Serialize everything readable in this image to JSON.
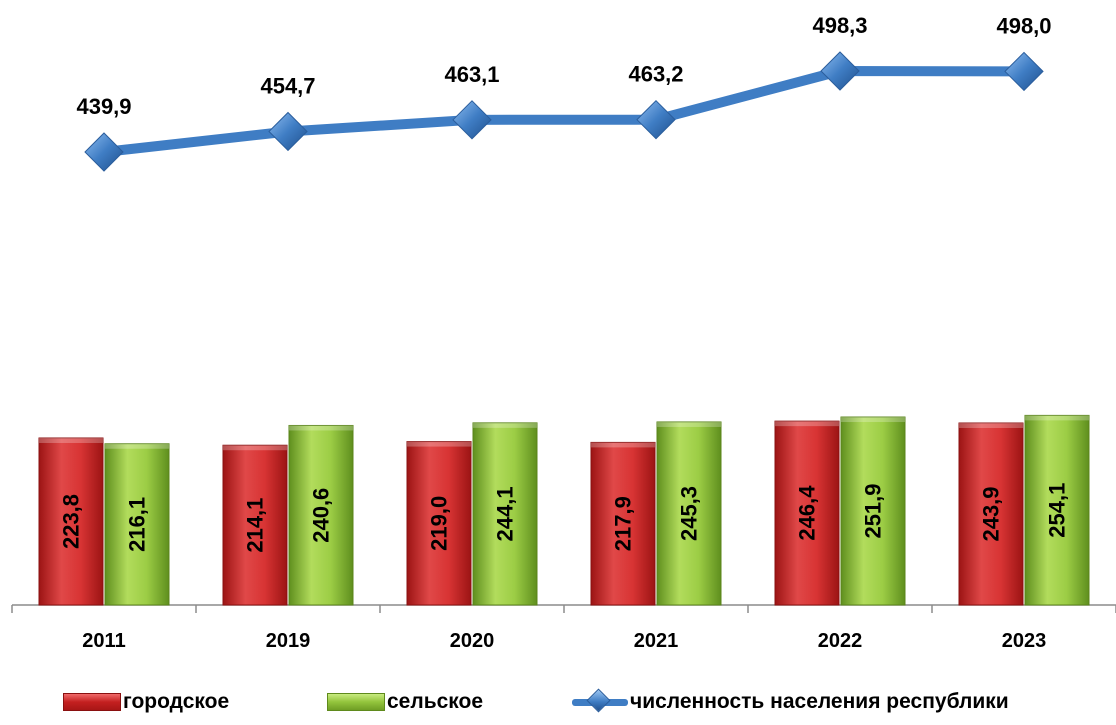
{
  "chart_data": {
    "type": "bar+line",
    "categories": [
      "2011",
      "2019",
      "2020",
      "2021",
      "2022",
      "2023"
    ],
    "series": [
      {
        "name": "городское",
        "type": "bar",
        "color": "#d42f2f",
        "values": [
          223.8,
          214.1,
          219.0,
          217.9,
          246.4,
          243.9
        ],
        "labels": [
          "223,8",
          "214,1",
          "219,0",
          "217,9",
          "246,4",
          "243,9"
        ]
      },
      {
        "name": "сельское",
        "type": "bar",
        "color": "#8fc13a",
        "values": [
          216.1,
          240.6,
          244.1,
          245.3,
          251.9,
          254.1
        ],
        "labels": [
          "216,1",
          "240,6",
          "244,1",
          "245,3",
          "251,9",
          "254,1"
        ]
      },
      {
        "name": "численность населения республики",
        "type": "line",
        "color": "#3f7dc4",
        "values": [
          439.9,
          454.7,
          463.1,
          463.2,
          498.3,
          498.0
        ],
        "labels": [
          "439,9",
          "454,7",
          "463,1",
          "463,2",
          "498,3",
          "498,0"
        ]
      }
    ],
    "legend_position": "bottom",
    "grid": false
  }
}
